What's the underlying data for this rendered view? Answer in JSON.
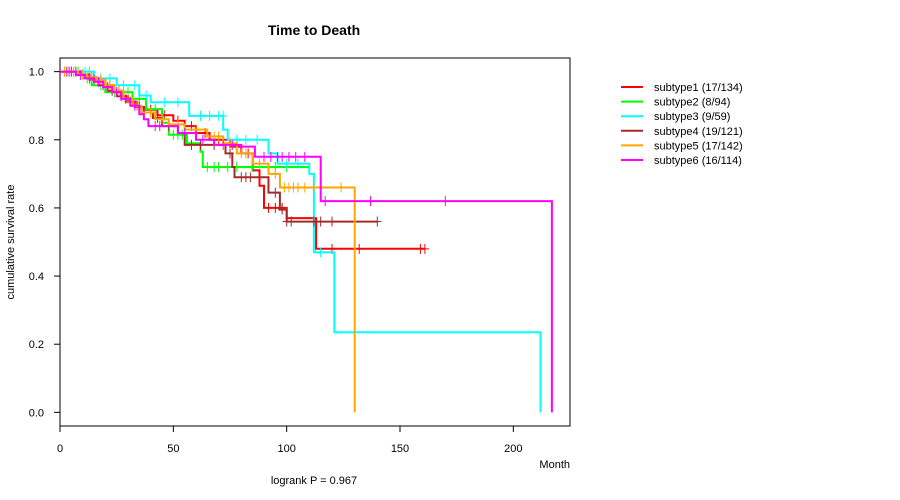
{
  "chart_data": {
    "type": "line",
    "title": "Time to Death",
    "xlabel": "Month",
    "ylabel": "cumulative survival rate",
    "annotation": "logrank P = 0.967",
    "xlim": [
      0,
      225
    ],
    "ylim": [
      -0.04,
      1.04
    ],
    "x_ticks": [
      0,
      50,
      100,
      150,
      200
    ],
    "y_ticks": [
      0.0,
      0.2,
      0.4,
      0.6,
      0.8,
      1.0
    ],
    "y_tick_labels": [
      "0.0",
      "0.2",
      "0.4",
      "0.6",
      "0.8",
      "1.0"
    ],
    "grid": false,
    "legend_position": "right",
    "series": [
      {
        "name": "subtype1 (17/134)",
        "color": "#ff0000",
        "steps": [
          [
            0,
            1.0
          ],
          [
            8,
            0.992
          ],
          [
            12,
            0.984
          ],
          [
            16,
            0.976
          ],
          [
            20,
            0.96
          ],
          [
            24,
            0.944
          ],
          [
            27,
            0.928
          ],
          [
            30,
            0.912
          ],
          [
            34,
            0.896
          ],
          [
            38,
            0.888
          ],
          [
            43,
            0.872
          ],
          [
            50,
            0.856
          ],
          [
            55,
            0.84
          ],
          [
            60,
            0.82
          ],
          [
            66,
            0.8
          ],
          [
            75,
            0.78
          ],
          [
            80,
            0.76
          ],
          [
            85,
            0.71
          ],
          [
            88,
            0.665
          ],
          [
            90,
            0.6
          ],
          [
            100,
            0.57
          ],
          [
            113,
            0.48
          ],
          [
            161,
            0.48
          ]
        ],
        "censored": [
          [
            2,
            1.0
          ],
          [
            5,
            1.0
          ],
          [
            10,
            0.992
          ],
          [
            14,
            0.984
          ],
          [
            22,
            0.96
          ],
          [
            26,
            0.944
          ],
          [
            32,
            0.912
          ],
          [
            40,
            0.888
          ],
          [
            46,
            0.872
          ],
          [
            52,
            0.856
          ],
          [
            58,
            0.84
          ],
          [
            64,
            0.82
          ],
          [
            70,
            0.8
          ],
          [
            78,
            0.78
          ],
          [
            83,
            0.76
          ],
          [
            92,
            0.6
          ],
          [
            95,
            0.6
          ],
          [
            98,
            0.6
          ],
          [
            120,
            0.48
          ],
          [
            130,
            0.48
          ],
          [
            132,
            0.48
          ],
          [
            159,
            0.48
          ],
          [
            161,
            0.48
          ]
        ]
      },
      {
        "name": "subtype2 (8/94)",
        "color": "#00ff00",
        "steps": [
          [
            0,
            1.0
          ],
          [
            10,
            0.98
          ],
          [
            14,
            0.96
          ],
          [
            20,
            0.94
          ],
          [
            32,
            0.92
          ],
          [
            38,
            0.89
          ],
          [
            45,
            0.85
          ],
          [
            48,
            0.815
          ],
          [
            56,
            0.79
          ],
          [
            62,
            0.765
          ],
          [
            63,
            0.72
          ],
          [
            87,
            0.72
          ],
          [
            110,
            0.72
          ]
        ],
        "censored": [
          [
            4,
            1.0
          ],
          [
            8,
            1.0
          ],
          [
            12,
            0.98
          ],
          [
            18,
            0.96
          ],
          [
            24,
            0.94
          ],
          [
            26,
            0.94
          ],
          [
            30,
            0.94
          ],
          [
            35,
            0.92
          ],
          [
            42,
            0.89
          ],
          [
            50,
            0.815
          ],
          [
            52,
            0.815
          ],
          [
            54,
            0.815
          ],
          [
            65,
            0.72
          ],
          [
            68,
            0.72
          ],
          [
            70,
            0.72
          ],
          [
            74,
            0.72
          ],
          [
            78,
            0.72
          ],
          [
            85,
            0.72
          ],
          [
            95,
            0.72
          ],
          [
            100,
            0.72
          ]
        ]
      },
      {
        "name": "subtype3 (9/59)",
        "color": "#00ffff",
        "steps": [
          [
            0,
            1.0
          ],
          [
            15,
            0.98
          ],
          [
            25,
            0.96
          ],
          [
            35,
            0.93
          ],
          [
            40,
            0.91
          ],
          [
            57,
            0.87
          ],
          [
            72,
            0.83
          ],
          [
            74,
            0.8
          ],
          [
            92,
            0.76
          ],
          [
            96,
            0.73
          ],
          [
            110,
            0.7
          ],
          [
            112,
            0.47
          ],
          [
            120,
            0.47
          ],
          [
            121,
            0.235
          ],
          [
            212,
            0.235
          ],
          [
            212,
            0.0
          ]
        ],
        "censored": [
          [
            6,
            1.0
          ],
          [
            11,
            1.0
          ],
          [
            13,
            1.0
          ],
          [
            18,
            0.98
          ],
          [
            22,
            0.98
          ],
          [
            28,
            0.96
          ],
          [
            33,
            0.96
          ],
          [
            38,
            0.93
          ],
          [
            46,
            0.91
          ],
          [
            52,
            0.91
          ],
          [
            62,
            0.87
          ],
          [
            66,
            0.87
          ],
          [
            70,
            0.87
          ],
          [
            72,
            0.87
          ],
          [
            78,
            0.8
          ],
          [
            82,
            0.8
          ],
          [
            87,
            0.8
          ],
          [
            100,
            0.73
          ],
          [
            105,
            0.73
          ],
          [
            115,
            0.47
          ]
        ]
      },
      {
        "name": "subtype4 (19/121)",
        "color": "#a52a2a",
        "steps": [
          [
            0,
            1.0
          ],
          [
            9,
            0.992
          ],
          [
            13,
            0.976
          ],
          [
            17,
            0.96
          ],
          [
            21,
            0.944
          ],
          [
            25,
            0.928
          ],
          [
            29,
            0.912
          ],
          [
            33,
            0.896
          ],
          [
            37,
            0.88
          ],
          [
            41,
            0.864
          ],
          [
            45,
            0.84
          ],
          [
            52,
            0.82
          ],
          [
            55,
            0.785
          ],
          [
            65,
            0.785
          ],
          [
            73,
            0.76
          ],
          [
            76,
            0.72
          ],
          [
            77,
            0.69
          ],
          [
            85,
            0.69
          ],
          [
            92,
            0.645
          ],
          [
            97,
            0.595
          ],
          [
            100,
            0.56
          ],
          [
            140,
            0.56
          ]
        ],
        "censored": [
          [
            3,
            1.0
          ],
          [
            7,
            1.0
          ],
          [
            15,
            0.976
          ],
          [
            19,
            0.96
          ],
          [
            23,
            0.944
          ],
          [
            27,
            0.928
          ],
          [
            31,
            0.912
          ],
          [
            35,
            0.896
          ],
          [
            43,
            0.864
          ],
          [
            48,
            0.84
          ],
          [
            58,
            0.785
          ],
          [
            62,
            0.785
          ],
          [
            68,
            0.785
          ],
          [
            75,
            0.76
          ],
          [
            80,
            0.69
          ],
          [
            82,
            0.69
          ],
          [
            84,
            0.69
          ],
          [
            95,
            0.645
          ],
          [
            98,
            0.595
          ],
          [
            100,
            0.56
          ],
          [
            102,
            0.56
          ],
          [
            112,
            0.56
          ],
          [
            115,
            0.56
          ],
          [
            120,
            0.56
          ],
          [
            140,
            0.56
          ]
        ]
      },
      {
        "name": "subtype5 (17/142)",
        "color": "#ffa500",
        "steps": [
          [
            0,
            1.0
          ],
          [
            8,
            0.992
          ],
          [
            12,
            0.984
          ],
          [
            16,
            0.976
          ],
          [
            20,
            0.96
          ],
          [
            24,
            0.944
          ],
          [
            28,
            0.92
          ],
          [
            32,
            0.9
          ],
          [
            36,
            0.88
          ],
          [
            42,
            0.86
          ],
          [
            48,
            0.845
          ],
          [
            55,
            0.83
          ],
          [
            65,
            0.81
          ],
          [
            72,
            0.79
          ],
          [
            78,
            0.76
          ],
          [
            85,
            0.73
          ],
          [
            92,
            0.7
          ],
          [
            97,
            0.66
          ],
          [
            115,
            0.66
          ],
          [
            130,
            0.66
          ],
          [
            130,
            0.0
          ]
        ],
        "censored": [
          [
            2,
            1.0
          ],
          [
            6,
            1.0
          ],
          [
            10,
            0.992
          ],
          [
            14,
            0.984
          ],
          [
            18,
            0.976
          ],
          [
            22,
            0.96
          ],
          [
            26,
            0.944
          ],
          [
            30,
            0.92
          ],
          [
            34,
            0.9
          ],
          [
            40,
            0.88
          ],
          [
            45,
            0.86
          ],
          [
            52,
            0.845
          ],
          [
            60,
            0.83
          ],
          [
            68,
            0.81
          ],
          [
            70,
            0.81
          ],
          [
            75,
            0.79
          ],
          [
            80,
            0.76
          ],
          [
            82,
            0.76
          ],
          [
            88,
            0.73
          ],
          [
            95,
            0.7
          ],
          [
            99,
            0.66
          ],
          [
            101,
            0.66
          ],
          [
            103,
            0.66
          ],
          [
            105,
            0.66
          ],
          [
            108,
            0.66
          ],
          [
            112,
            0.66
          ],
          [
            124,
            0.66
          ]
        ]
      },
      {
        "name": "subtype6 (16/114)",
        "color": "#ff00ff",
        "steps": [
          [
            0,
            1.0
          ],
          [
            7,
            0.99
          ],
          [
            11,
            0.98
          ],
          [
            15,
            0.97
          ],
          [
            19,
            0.955
          ],
          [
            23,
            0.94
          ],
          [
            27,
            0.92
          ],
          [
            31,
            0.9
          ],
          [
            35,
            0.875
          ],
          [
            37,
            0.86
          ],
          [
            39,
            0.84
          ],
          [
            46,
            0.84
          ],
          [
            52,
            0.82
          ],
          [
            60,
            0.8
          ],
          [
            68,
            0.785
          ],
          [
            80,
            0.78
          ],
          [
            86,
            0.75
          ],
          [
            100,
            0.75
          ],
          [
            113,
            0.75
          ],
          [
            115,
            0.62
          ],
          [
            217,
            0.62
          ],
          [
            217,
            0.0
          ]
        ],
        "censored": [
          [
            4,
            1.0
          ],
          [
            9,
            0.99
          ],
          [
            13,
            0.98
          ],
          [
            17,
            0.97
          ],
          [
            21,
            0.955
          ],
          [
            25,
            0.94
          ],
          [
            29,
            0.92
          ],
          [
            33,
            0.9
          ],
          [
            42,
            0.84
          ],
          [
            44,
            0.84
          ],
          [
            55,
            0.82
          ],
          [
            63,
            0.8
          ],
          [
            72,
            0.785
          ],
          [
            76,
            0.785
          ],
          [
            90,
            0.75
          ],
          [
            93,
            0.75
          ],
          [
            96,
            0.75
          ],
          [
            98,
            0.75
          ],
          [
            101,
            0.75
          ],
          [
            104,
            0.75
          ],
          [
            108,
            0.75
          ],
          [
            117,
            0.62
          ],
          [
            137,
            0.62
          ],
          [
            170,
            0.62
          ]
        ]
      }
    ]
  }
}
